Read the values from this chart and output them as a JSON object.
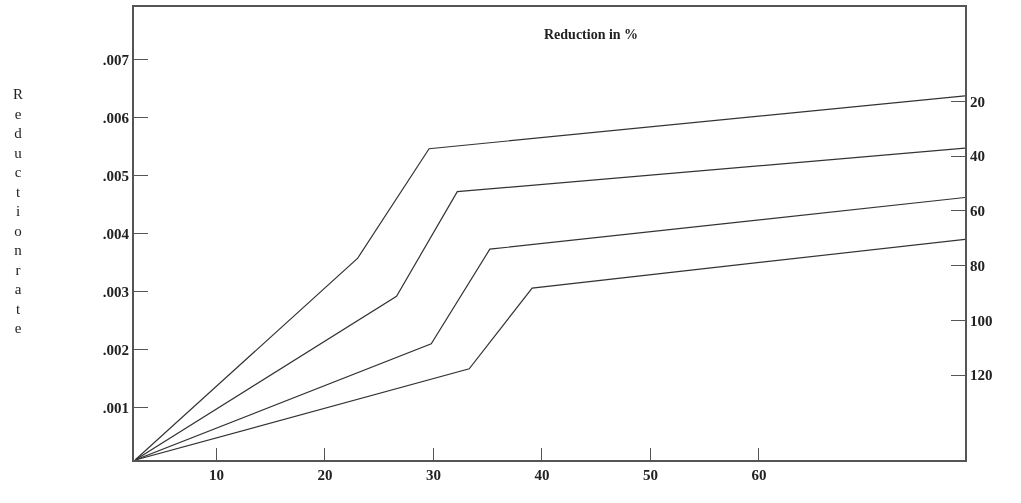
{
  "chart_data": {
    "type": "line",
    "title": "Reduction in %",
    "ylabel": "Reductionrate",
    "series": [
      {
        "color": "#333333",
        "x": [
          2.5,
          23.0,
          29.6,
          79
        ],
        "values": [
          0.0001,
          0.00357,
          0.00546,
          0.00637
        ]
      },
      {
        "color": "#333333",
        "x": [
          2.5,
          26.6,
          32.2,
          79
        ],
        "values": [
          0.0001,
          0.00292,
          0.00472,
          0.00547
        ]
      },
      {
        "color": "#333333",
        "x": [
          2.5,
          29.8,
          35.2,
          79
        ],
        "values": [
          0.0001,
          0.0021,
          0.00373,
          0.00462
        ]
      },
      {
        "color": "#333333",
        "x": [
          2.5,
          33.3,
          39.1,
          79
        ],
        "values": [
          0.0001,
          0.00167,
          0.00306,
          0.0039
        ]
      }
    ],
    "xlim": [
      2.4,
      79
    ],
    "xticks": [
      10,
      20,
      30,
      40,
      50,
      60
    ],
    "ylim": [
      0.0001,
      0.0079
    ],
    "yticks": [
      {
        "value": 0.001,
        "label": ".001"
      },
      {
        "value": 0.002,
        "label": ".002"
      },
      {
        "value": 0.003,
        "label": ".003"
      },
      {
        "value": 0.004,
        "label": ".004"
      },
      {
        "value": 0.005,
        "label": ".005"
      },
      {
        "value": 0.006,
        "label": ".006"
      },
      {
        "value": 0.007,
        "label": ".007"
      }
    ],
    "y2lim": [
      151,
      -14.5
    ],
    "y2ticks": [
      20,
      40,
      60,
      80,
      100,
      120
    ],
    "marker": "none",
    "line_style": "solid"
  }
}
